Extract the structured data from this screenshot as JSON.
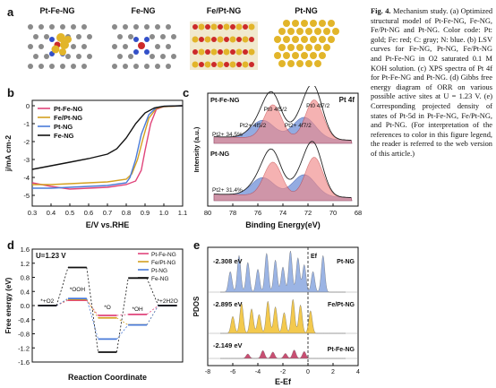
{
  "panel_letters": {
    "a": "a",
    "b": "b",
    "c": "c",
    "d": "d",
    "e": "e"
  },
  "panel_a": {
    "models": [
      "Pt-Fe-NG",
      "Fe-NG",
      "Fe/Pt-NG",
      "Pt-NG"
    ]
  },
  "caption": {
    "title": "Fig. 4.",
    "body": "Mechanism study. (a) Optimized structural model of Pt-Fe-NG, Fe-NG, Fe/Pt-NG and Pt-NG. Color code: Pt: gold; Fe: red; C: gray; N: blue. (b) LSV curves for Fe-NG, Pt-NG, Fe/Pt-NG and Pt-Fe-NG in O2 saturated 0.1 M KOH solution. (c) XPS spectra of Pt 4f for Pt-Fe-NG and Pt-NG. (d) Gibbs free energy diagram of ORR on various possible active sites at U = 1.23 V. (e) Corresponding projected density of states of Pt-5d in Pt-Fe-NG, Fe/Pt-NG, and Pt-NG. (For interpretation of the references to color in this figure legend, the reader is referred to the web version of this article.)"
  },
  "chart_data": [
    {
      "panel": "b",
      "type": "line",
      "xlabel": "E/V vs.RHE",
      "ylabel": "j/mA cm-2",
      "xlim": [
        0.3,
        1.1
      ],
      "ylim": [
        -5.6,
        0.3
      ],
      "xticks": [
        "0.3",
        "0.4",
        "0.5",
        "0.6",
        "0.7",
        "0.8",
        "0.9",
        "1.0",
        "1.1"
      ],
      "yticks": [
        "0",
        "-1",
        "-2",
        "-3",
        "-4",
        "-5"
      ],
      "series": [
        {
          "name": "Pt-Fe-NG",
          "color": "#e0457b",
          "x": [
            0.3,
            0.4,
            0.5,
            0.6,
            0.7,
            0.8,
            0.85,
            0.88,
            0.9,
            0.93,
            0.96,
            1.0,
            1.1
          ],
          "y": [
            -4.3,
            -4.5,
            -4.65,
            -4.6,
            -4.55,
            -4.4,
            -4.2,
            -3.6,
            -2.5,
            -1.0,
            -0.2,
            -0.05,
            0
          ]
        },
        {
          "name": "Fe/Pt-NG",
          "color": "#d4a020",
          "x": [
            0.3,
            0.4,
            0.5,
            0.6,
            0.7,
            0.8,
            0.83,
            0.86,
            0.89,
            0.92,
            0.96,
            1.0,
            1.1
          ],
          "y": [
            -4.4,
            -4.4,
            -4.35,
            -4.3,
            -4.25,
            -4.1,
            -3.8,
            -3.0,
            -1.8,
            -0.7,
            -0.15,
            -0.05,
            0
          ]
        },
        {
          "name": "Pt-NG",
          "color": "#4a7bd8",
          "x": [
            0.3,
            0.4,
            0.5,
            0.6,
            0.7,
            0.8,
            0.82,
            0.85,
            0.88,
            0.92,
            0.96,
            1.0,
            1.1
          ],
          "y": [
            -4.6,
            -4.6,
            -4.55,
            -4.5,
            -4.45,
            -4.3,
            -4.0,
            -3.0,
            -1.6,
            -0.5,
            -0.1,
            -0.03,
            0
          ]
        },
        {
          "name": "Fe-NG",
          "color": "#111111",
          "x": [
            0.3,
            0.4,
            0.5,
            0.6,
            0.7,
            0.75,
            0.8,
            0.85,
            0.9,
            0.95,
            1.0,
            1.1
          ],
          "y": [
            -3.55,
            -3.35,
            -3.15,
            -2.95,
            -2.7,
            -2.4,
            -1.8,
            -1.0,
            -0.4,
            -0.12,
            -0.03,
            0
          ]
        }
      ]
    },
    {
      "panel": "c",
      "type": "line",
      "xlabel": "Binding Energy(eV)",
      "ylabel": "Intensity (a.u.)",
      "xlim": [
        80,
        68
      ],
      "xticks": [
        "80",
        "78",
        "76",
        "74",
        "72",
        "70",
        "68"
      ],
      "title": "Pt 4f",
      "spectra": [
        {
          "name": "Pt-Fe-NG",
          "percent": "Pt2+ 34.5%",
          "peak_labels": [
            "Pt0 4f5/2",
            "Pt0 4f7/2",
            "Pt2+ 4f5/2",
            "Pt2+ 4f7/2"
          ]
        },
        {
          "name": "Pt-NG",
          "percent": "Pt2+ 31.4%"
        }
      ]
    },
    {
      "panel": "d",
      "type": "line",
      "title": "U=1.23 V",
      "xlabel": "Reaction Coordinate",
      "ylabel": "Free energy (eV)",
      "ylim": [
        -1.6,
        1.6
      ],
      "yticks": [
        "1.6",
        "1.2",
        "0.8",
        "0.4",
        "0.0",
        "-0.4",
        "-0.8",
        "-1.2",
        "-1.6"
      ],
      "steps": [
        "*+O2",
        "*OOH",
        "*O",
        "*OH",
        "*+2H2O"
      ],
      "series": [
        {
          "name": "Pt-Fe-NG",
          "color": "#e0457b",
          "values": [
            0,
            0.15,
            -0.28,
            -0.25,
            0
          ]
        },
        {
          "name": "Fe/Pt-NG",
          "color": "#d4a020",
          "values": [
            0,
            0.18,
            -0.35,
            -0.55,
            0
          ]
        },
        {
          "name": "Pt-NG",
          "color": "#4a7bd8",
          "values": [
            0,
            0.2,
            -0.95,
            -0.55,
            0
          ]
        },
        {
          "name": "Fe-NG",
          "color": "#111111",
          "values": [
            0,
            1.08,
            -1.32,
            0.78,
            0
          ]
        }
      ]
    },
    {
      "panel": "e",
      "type": "area",
      "xlabel": "E-Ef",
      "ylabel": "PDOS",
      "xlim": [
        -8,
        4
      ],
      "xticks": [
        "-8",
        "-6",
        "-4",
        "-2",
        "0",
        "2",
        "4"
      ],
      "fermi_label": "Ef",
      "series": [
        {
          "name": "Pt-NG",
          "color": "#8aa8e0",
          "dband": "-2.308 eV"
        },
        {
          "name": "Fe/Pt-NG",
          "color": "#f2c030",
          "dband": "-2.895 eV"
        },
        {
          "name": "Pt-Fe-NG",
          "color": "#c0305a",
          "dband": "-2.149 eV"
        }
      ]
    }
  ]
}
